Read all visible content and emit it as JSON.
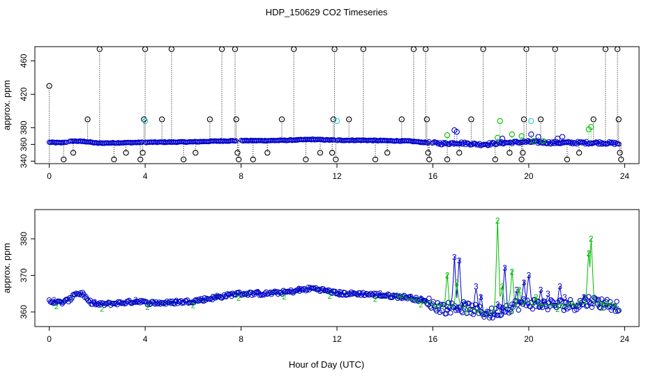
{
  "title": "HDP_150629  CO2 Timeseries",
  "xlabel": "Hour of Day (UTC)",
  "colors": {
    "series1": "#0000cc",
    "series2": "#00bb00",
    "extreme": "#000000",
    "cyan": "#22cccc",
    "axis": "#000000"
  },
  "chart_data": [
    {
      "type": "scatter",
      "panel": "top",
      "ylabel": "approx. ppm",
      "xlim": [
        -0.6,
        24.6
      ],
      "ylim": [
        337,
        477
      ],
      "xticks": [
        0,
        4,
        8,
        12,
        16,
        20,
        24
      ],
      "yticks": [
        340,
        360,
        380,
        420,
        460
      ],
      "baseline": [
        [
          0.0,
          362.5
        ],
        [
          0.5,
          362.0
        ],
        [
          1.0,
          364.0
        ],
        [
          1.5,
          363.5
        ],
        [
          2.0,
          361.5
        ],
        [
          3.0,
          362.0
        ],
        [
          4.0,
          362.5
        ],
        [
          6.0,
          363.0
        ],
        [
          7.0,
          364.0
        ],
        [
          8.0,
          364.5
        ],
        [
          9.0,
          364.5
        ],
        [
          10.0,
          365.0
        ],
        [
          11.0,
          366.0
        ],
        [
          12.0,
          365.0
        ],
        [
          13.0,
          365.0
        ],
        [
          14.0,
          364.5
        ],
        [
          15.0,
          364.0
        ],
        [
          15.8,
          362.0
        ],
        [
          16.5,
          361.0
        ],
        [
          17.0,
          362.0
        ],
        [
          18.0,
          360.0
        ],
        [
          19.0,
          362.0
        ],
        [
          20.0,
          363.0
        ],
        [
          21.0,
          362.0
        ],
        [
          22.0,
          362.0
        ],
        [
          23.0,
          362.0
        ],
        [
          23.8,
          361.0
        ]
      ],
      "gaps": [
        [
          0.75,
          0.85
        ],
        [
          3.9,
          4.0
        ],
        [
          7.8,
          8.0
        ],
        [
          11.9,
          12.0
        ],
        [
          15.85,
          15.95
        ]
      ],
      "series_extreme": [
        {
          "x": 0.0,
          "y": 430,
          "bottom": true
        },
        {
          "x": 0.6,
          "y": 342
        },
        {
          "x": 1.0,
          "y": 350
        },
        {
          "x": 1.6,
          "y": 390
        },
        {
          "x": 2.1,
          "y": 474
        },
        {
          "x": 2.7,
          "y": 342
        },
        {
          "x": 3.2,
          "y": 350
        },
        {
          "x": 3.8,
          "y": 342
        },
        {
          "x": 3.9,
          "y": 350
        },
        {
          "x": 3.95,
          "y": 390
        },
        {
          "x": 4.0,
          "y": 474
        },
        {
          "x": 4.7,
          "y": 390
        },
        {
          "x": 5.1,
          "y": 474
        },
        {
          "x": 5.6,
          "y": 342
        },
        {
          "x": 6.1,
          "y": 350
        },
        {
          "x": 6.7,
          "y": 390
        },
        {
          "x": 7.2,
          "y": 474
        },
        {
          "x": 7.75,
          "y": 474
        },
        {
          "x": 7.8,
          "y": 390
        },
        {
          "x": 7.85,
          "y": 350
        },
        {
          "x": 7.9,
          "y": 342
        },
        {
          "x": 8.5,
          "y": 342
        },
        {
          "x": 9.1,
          "y": 350
        },
        {
          "x": 9.7,
          "y": 390
        },
        {
          "x": 10.2,
          "y": 474
        },
        {
          "x": 10.7,
          "y": 342
        },
        {
          "x": 11.3,
          "y": 350
        },
        {
          "x": 11.8,
          "y": 350
        },
        {
          "x": 11.85,
          "y": 390
        },
        {
          "x": 11.9,
          "y": 474
        },
        {
          "x": 11.95,
          "y": 342
        },
        {
          "x": 12.5,
          "y": 390
        },
        {
          "x": 13.1,
          "y": 474
        },
        {
          "x": 13.6,
          "y": 342
        },
        {
          "x": 14.1,
          "y": 350
        },
        {
          "x": 14.7,
          "y": 390
        },
        {
          "x": 15.2,
          "y": 474
        },
        {
          "x": 15.7,
          "y": 474
        },
        {
          "x": 15.75,
          "y": 390
        },
        {
          "x": 15.8,
          "y": 350
        },
        {
          "x": 15.85,
          "y": 342
        },
        {
          "x": 16.6,
          "y": 342
        },
        {
          "x": 17.1,
          "y": 350
        },
        {
          "x": 17.6,
          "y": 390
        },
        {
          "x": 18.1,
          "y": 474
        },
        {
          "x": 18.6,
          "y": 342
        },
        {
          "x": 19.2,
          "y": 350
        },
        {
          "x": 19.7,
          "y": 342
        },
        {
          "x": 19.75,
          "y": 350
        },
        {
          "x": 19.8,
          "y": 390
        },
        {
          "x": 19.9,
          "y": 474
        },
        {
          "x": 20.5,
          "y": 390
        },
        {
          "x": 21.1,
          "y": 474
        },
        {
          "x": 21.6,
          "y": 342
        },
        {
          "x": 22.1,
          "y": 350
        },
        {
          "x": 22.7,
          "y": 390
        },
        {
          "x": 23.2,
          "y": 474
        },
        {
          "x": 23.7,
          "y": 474
        },
        {
          "x": 23.75,
          "y": 390
        },
        {
          "x": 23.8,
          "y": 350
        },
        {
          "x": 23.85,
          "y": 342
        }
      ],
      "series_green": [
        {
          "x": 16.6,
          "y": 371
        },
        {
          "x": 18.7,
          "y": 368
        },
        {
          "x": 18.8,
          "y": 388
        },
        {
          "x": 19.3,
          "y": 372
        },
        {
          "x": 19.7,
          "y": 370
        },
        {
          "x": 20.2,
          "y": 364
        },
        {
          "x": 22.5,
          "y": 378
        },
        {
          "x": 22.6,
          "y": 381
        },
        {
          "x": 20.6,
          "y": 364
        }
      ],
      "series_cyan": [
        {
          "x": 4.0,
          "y": 388
        },
        {
          "x": 12.0,
          "y": 388
        },
        {
          "x": 20.1,
          "y": 388
        }
      ],
      "series_blue_outliers": [
        {
          "x": 16.9,
          "y": 377
        },
        {
          "x": 17.0,
          "y": 375
        },
        {
          "x": 18.3,
          "y": 359
        },
        {
          "x": 18.9,
          "y": 367
        },
        {
          "x": 20.1,
          "y": 372
        },
        {
          "x": 20.4,
          "y": 369
        },
        {
          "x": 21.2,
          "y": 367
        },
        {
          "x": 21.4,
          "y": 369
        }
      ]
    },
    {
      "type": "line",
      "panel": "bottom",
      "ylabel": "approx. ppm",
      "xlim": [
        -0.6,
        24.6
      ],
      "ylim": [
        356,
        388
      ],
      "xticks": [
        0,
        4,
        8,
        12,
        16,
        20,
        24
      ],
      "yticks": [
        360,
        370,
        380
      ],
      "series": [
        {
          "name": "3",
          "color": "#0000cc",
          "peaks": [
            [
              16.9,
              375
            ],
            [
              17.1,
              374
            ],
            [
              17.8,
              367
            ],
            [
              18.0,
              364
            ],
            [
              18.7,
              362
            ],
            [
              19.0,
              372
            ],
            [
              19.5,
              366
            ],
            [
              19.8,
              368
            ],
            [
              20.0,
              370
            ],
            [
              20.5,
              366
            ],
            [
              20.8,
              365
            ],
            [
              21.3,
              367
            ],
            [
              21.5,
              364
            ],
            [
              22.3,
              364
            ],
            [
              22.9,
              362
            ]
          ]
        },
        {
          "name": "2",
          "color": "#00bb00",
          "peaks": [
            [
              16.6,
              370
            ],
            [
              17.0,
              368
            ],
            [
              18.7,
              385
            ],
            [
              18.9,
              367
            ],
            [
              19.3,
              371
            ],
            [
              19.6,
              366
            ],
            [
              20.3,
              364
            ],
            [
              22.6,
              380
            ],
            [
              22.5,
              376
            ]
          ]
        }
      ],
      "baseline": [
        [
          0.0,
          363.0
        ],
        [
          0.5,
          362.5
        ],
        [
          0.9,
          363.5
        ],
        [
          1.0,
          365.0
        ],
        [
          1.4,
          365.0
        ],
        [
          1.6,
          363.0
        ],
        [
          2.0,
          362.0
        ],
        [
          3.0,
          362.5
        ],
        [
          3.8,
          363.0
        ],
        [
          4.0,
          362.5
        ],
        [
          5.0,
          362.5
        ],
        [
          6.0,
          363.0
        ],
        [
          7.0,
          364.0
        ],
        [
          7.8,
          365.0
        ],
        [
          8.0,
          365.0
        ],
        [
          9.0,
          365.0
        ],
        [
          10.0,
          365.5
        ],
        [
          11.0,
          366.5
        ],
        [
          11.8,
          365.5
        ],
        [
          12.0,
          365.0
        ],
        [
          13.0,
          365.0
        ],
        [
          14.0,
          364.5
        ],
        [
          15.0,
          364.0
        ],
        [
          15.6,
          363.0
        ],
        [
          16.0,
          362.0
        ],
        [
          16.5,
          361.0
        ],
        [
          17.0,
          361.5
        ],
        [
          17.5,
          361.0
        ],
        [
          18.0,
          360.0
        ],
        [
          18.5,
          359.5
        ],
        [
          19.0,
          361.0
        ],
        [
          19.5,
          362.0
        ],
        [
          20.0,
          362.5
        ],
        [
          20.5,
          362.0
        ],
        [
          21.0,
          362.0
        ],
        [
          21.5,
          362.0
        ],
        [
          22.0,
          362.0
        ],
        [
          22.5,
          363.0
        ],
        [
          23.0,
          362.5
        ],
        [
          23.8,
          361.5
        ]
      ]
    }
  ]
}
